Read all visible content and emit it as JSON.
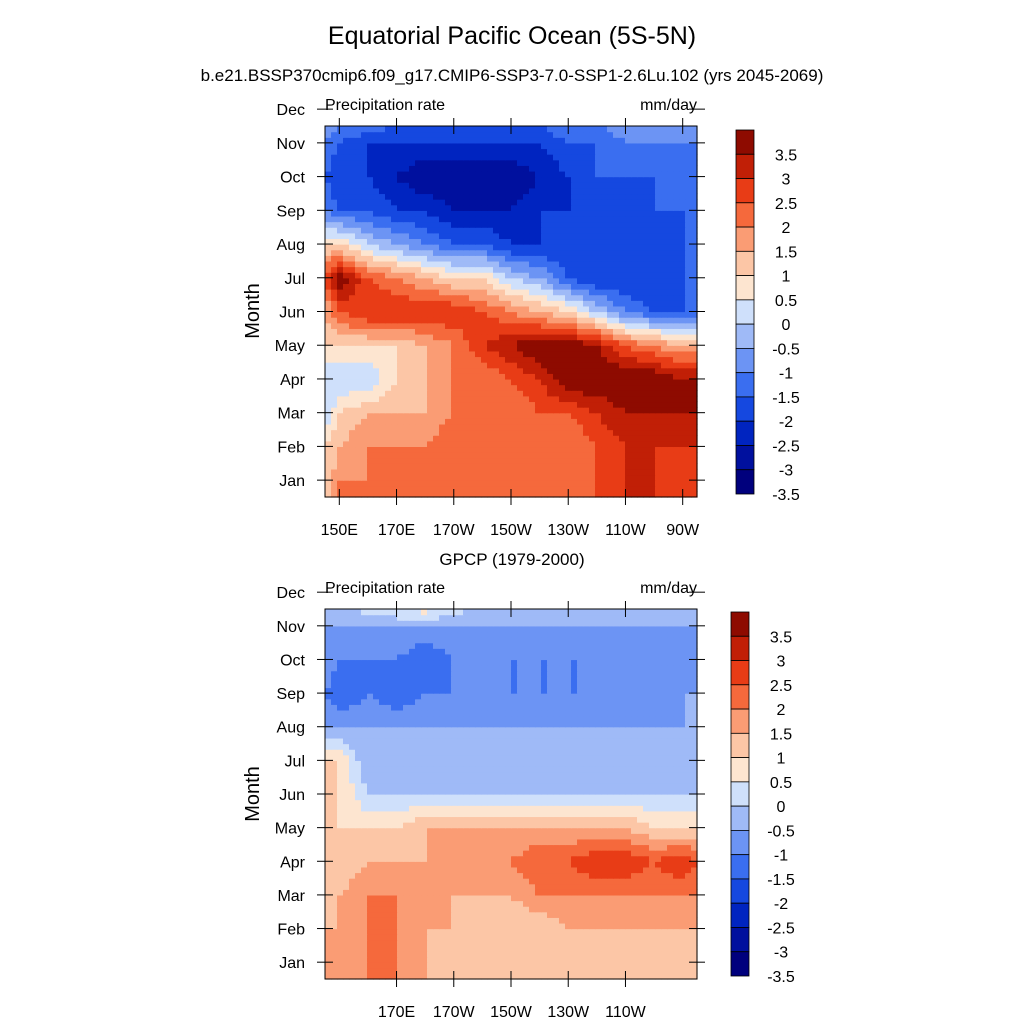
{
  "figure": {
    "title": "Equatorial Pacific Ocean (5S-5N)",
    "subtitle": "b.e21.BSSP370cmip6.f09_g17.CMIP6-SSP3-7.0-SSP1-2.6Lu.102 (yrs 2045-2069)"
  },
  "chart_data": [
    {
      "type": "heatmap",
      "title": "",
      "left_label": "Precipitation rate",
      "right_label": "mm/day",
      "ylabel": "Month",
      "xlabel": "",
      "x_ticks": [
        150,
        170,
        190,
        210,
        230,
        250,
        270
      ],
      "x_tick_labels": [
        "150E",
        "170E",
        "170W",
        "150W",
        "130W",
        "110W",
        "90W"
      ],
      "xlim": [
        145,
        275
      ],
      "y_tick_labels": [
        "Jan",
        "Feb",
        "Mar",
        "Apr",
        "May",
        "Jun",
        "Jul",
        "Aug",
        "Sep",
        "Oct",
        "Nov",
        "Dec"
      ],
      "ylim": [
        0.5,
        11.5
      ],
      "x": [
        145,
        150,
        160,
        170,
        180,
        190,
        200,
        210,
        220,
        230,
        240,
        250,
        260,
        270,
        275
      ],
      "z_units": "mm/day",
      "values": [
        [
          0.5,
          1.5,
          1.5,
          2,
          1.5,
          1.5,
          1.5,
          1.5,
          1.5,
          1.5,
          2,
          2.5,
          2.5,
          2,
          2
        ],
        [
          0.5,
          1.0,
          1.5,
          1.5,
          1.5,
          2,
          1.5,
          1.5,
          1.5,
          1.5,
          2,
          2.5,
          2.5,
          2.5,
          2.5
        ],
        [
          -0.5,
          0.5,
          1.0,
          1.0,
          1.0,
          1.5,
          1.5,
          1.5,
          2,
          2,
          2.5,
          3,
          3,
          3,
          3
        ],
        [
          -0.5,
          -0.5,
          -0.5,
          0.5,
          1.0,
          1.5,
          1.5,
          2,
          2.5,
          3.5,
          3.5,
          3.5,
          3.5,
          3,
          3
        ],
        [
          0.5,
          0.5,
          0.5,
          0.5,
          1.0,
          1.5,
          2.5,
          3,
          3.5,
          3.5,
          3,
          2,
          1.5,
          1.0,
          1.0
        ],
        [
          1.0,
          2,
          2.5,
          2.5,
          2.5,
          2.5,
          2,
          1.5,
          1.0,
          0.5,
          -0.5,
          -1.5,
          -2,
          -2,
          -2
        ],
        [
          2,
          3.5,
          2,
          1.5,
          1.0,
          0.5,
          0.5,
          -0.5,
          -1,
          -2,
          -2.5,
          -2.5,
          -2.5,
          -2,
          -1.5
        ],
        [
          0.5,
          0.5,
          -0.5,
          -1,
          -1.5,
          -2,
          -2,
          -2.5,
          -2.5,
          -2.5,
          -2.5,
          -2.5,
          -2.5,
          -2,
          -1.5
        ],
        [
          -1.5,
          -2,
          -2,
          -2.5,
          -2.5,
          -3,
          -3,
          -3,
          -2.5,
          -2.5,
          -2.5,
          -2.5,
          -2,
          -2,
          -2
        ],
        [
          -2,
          -2.5,
          -2.5,
          -3,
          -3.5,
          -3.5,
          -3.5,
          -3.5,
          -3,
          -2.5,
          -2,
          -2,
          -2,
          -2,
          -2
        ],
        [
          -1.5,
          -2,
          -2.5,
          -2.5,
          -2.5,
          -2.5,
          -2.5,
          -2.5,
          -2.5,
          -2,
          -2,
          -1.5,
          -1.5,
          -1.5,
          -1.5
        ],
        [
          -0.5,
          -1,
          -1,
          -1.5,
          -1.5,
          -1.5,
          -1.5,
          -1.5,
          -1.5,
          -1,
          -1,
          -1,
          -1,
          -1,
          -1
        ]
      ],
      "colorbar": {
        "labels": [
          "3.5",
          "3",
          "2.5",
          "2",
          "1.5",
          "1",
          "0.5",
          "0",
          "-0.5",
          "-1",
          "-1.5",
          "-2",
          "-2.5",
          "-3",
          "-3.5"
        ]
      }
    },
    {
      "type": "heatmap",
      "title": "GPCP (1979-2000)",
      "left_label": "Precipitation rate",
      "right_label": "mm/day",
      "ylabel": "Month",
      "xlabel": "",
      "x_ticks": [
        170,
        190,
        210,
        230,
        250
      ],
      "x_tick_labels": [
        "170E",
        "170W",
        "150W",
        "130W",
        "110W"
      ],
      "xlim": [
        145,
        275
      ],
      "y_tick_labels": [
        "Jan",
        "Feb",
        "Mar",
        "Apr",
        "May",
        "Jun",
        "Jul",
        "Aug",
        "Sep",
        "Oct",
        "Nov",
        "Dec"
      ],
      "ylim": [
        0.5,
        11.5
      ],
      "x": [
        145,
        150,
        160,
        170,
        180,
        190,
        200,
        210,
        220,
        230,
        240,
        250,
        260,
        270,
        275
      ],
      "z_units": "mm/day",
      "values": [
        [
          1.0,
          1.0,
          1.5,
          1.5,
          1.0,
          0.5,
          0.5,
          0.5,
          0.5,
          0.5,
          0.5,
          0.5,
          0.5,
          0.5,
          0.5
        ],
        [
          1.0,
          1.0,
          1.5,
          1.5,
          1.0,
          1.0,
          0.5,
          0.5,
          0.5,
          1.0,
          1.0,
          1.0,
          1.0,
          1.0,
          1.0
        ],
        [
          0.5,
          1.0,
          1.5,
          1.5,
          1.0,
          1.0,
          1.0,
          1.0,
          1.5,
          1.5,
          1.5,
          1.5,
          1.5,
          1.5,
          1.5
        ],
        [
          0.5,
          0.5,
          1.0,
          1.0,
          1.0,
          1.0,
          1.0,
          1.5,
          2,
          2,
          2.5,
          2.5,
          2,
          2.5,
          2
        ],
        [
          0.5,
          0.5,
          0.5,
          0.5,
          1.0,
          1.0,
          1.0,
          1.0,
          1.0,
          1.0,
          1.0,
          1.0,
          0.5,
          0.5,
          0.5
        ],
        [
          0.5,
          0.5,
          -0.5,
          -0.5,
          -0.5,
          -0.5,
          -0.5,
          -0.5,
          -0.5,
          -0.5,
          -0.5,
          -0.5,
          -0.5,
          -0.5,
          -0.5
        ],
        [
          0.5,
          0.5,
          -1,
          -1,
          -1,
          -1,
          -1,
          -1,
          -1,
          -1,
          -1,
          -1,
          -1,
          -1,
          -1
        ],
        [
          -1,
          -1,
          -1,
          -1,
          -1,
          -1,
          -1,
          -1,
          -1,
          -1,
          -1,
          -1,
          -1,
          -1,
          -1
        ],
        [
          -1.5,
          -2,
          -1.5,
          -2,
          -1.5,
          -1.5,
          -1,
          -1.5,
          -1.5,
          -1.5,
          -1.5,
          -1,
          -1.5,
          -1,
          -1
        ],
        [
          -1,
          -1.5,
          -1.5,
          -1.5,
          -2,
          -1.5,
          -1.5,
          -1.5,
          -1.5,
          -1.5,
          -1.5,
          -1,
          -1.5,
          -1.5,
          -1
        ],
        [
          -1,
          -1,
          -1,
          -1,
          -1,
          -1,
          -1,
          -1,
          -1,
          -1,
          -1,
          -1,
          -1,
          -1,
          -1
        ],
        [
          -0.5,
          -0.5,
          0.5,
          1.0,
          1.5,
          0.5,
          -0.5,
          -0.5,
          -0.5,
          -0.5,
          -0.5,
          -0.5,
          -0.5,
          -0.5,
          -0.5
        ]
      ],
      "colorbar": {
        "labels": [
          "3.5",
          "3",
          "2.5",
          "2",
          "1.5",
          "1",
          "0.5",
          "0",
          "-0.5",
          "-1",
          "-1.5",
          "-2",
          "-2.5",
          "-3",
          "-3.5"
        ]
      }
    }
  ],
  "palette": {
    "bins": [
      "#00007d",
      "#00109e",
      "#0024c0",
      "#1548e0",
      "#3a6ef0",
      "#6c94f4",
      "#9fbaf7",
      "#cfe0fb",
      "#fde5d0",
      "#fcc6a6",
      "#fa9c74",
      "#f5693c",
      "#e83c16",
      "#c11f06",
      "#8e0b00"
    ]
  }
}
